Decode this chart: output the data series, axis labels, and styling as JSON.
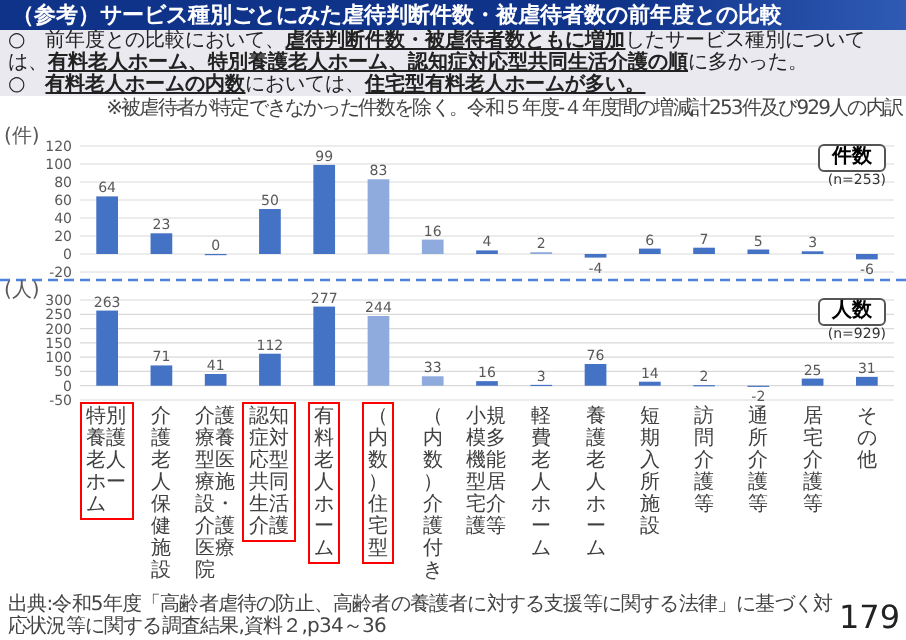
{
  "chart_data": [
    {
      "type": "bar",
      "title": "（参考）サービス種別ごとにみた虐待判断件数・被虐待者数の前年度との比較",
      "subtitle": "○　前年度との比較において、**虐待判断件数・被虐待者数ともに増加**したサービス種別については、**有料老人ホーム、特別養護老人ホーム、認知症対応型共同生活介護の順**に多かった。",
      "annotations": [
        "○　**有料老人ホームの内数**においては、**住宅型有料老人ホームが多い。**",
        "※被虐待者が特定できなかった件数を除く。令和５年度-４年度間の増減計253件及び929人の内訳",
        "件数",
        "(n=253)"
      ],
      "ylabel": "(件)",
      "categories": [
        null,
        null,
        null,
        null,
        null,
        null,
        null,
        null,
        null,
        null,
        null,
        null,
        null,
        null,
        null
      ],
      "values": [
        64,
        23,
        0,
        50,
        99,
        83,
        16,
        4,
        2,
        -4,
        6,
        7,
        5,
        3,
        -6
      ],
      "colors": [
        "#4472c4",
        "#4472c4",
        "#4472c4",
        "#4472c4",
        "#4472c4",
        "#8faadc",
        "#8faadc",
        "#4472c4",
        "#8faadc",
        "#4472c4",
        "#4472c4",
        "#4472c4",
        "#4472c4",
        "#4472c4",
        "#4472c4"
      ],
      "ylim": [
        -20,
        120
      ],
      "yticks": [
        -20,
        0,
        20,
        40,
        60,
        80,
        100,
        120
      ],
      "grid": "y",
      "data_labels": true,
      "tick_labels": "y"
    },
    {
      "type": "bar",
      "ylabel": "(人)",
      "annotations": [
        "人数",
        "(n=929)",
        "出典:令和5年度「高齢者虐待の防止、高齢者の養護者に対する支援等に関する法律」に基づく対応状況等に関する調査結果,資料２,p34～36",
        "179"
      ],
      "categories": [
        "特別養護老人ホーム",
        "介護老人保健施設",
        "介護療養型医療施設・介護医療院",
        "認知症対応型共同生活介護",
        "有料老人ホーム",
        "（内数）住宅型",
        "（内数）介護付き",
        "小規模多機能型居宅介護等",
        "軽費老人ホーム",
        "養護老人ホーム",
        "短期入所施設",
        "訪問介護等",
        "通所介護等",
        "居宅介護等",
        "その他"
      ],
      "values": [
        263,
        71,
        41,
        112,
        277,
        244,
        33,
        16,
        3,
        76,
        14,
        2,
        -2,
        25,
        31
      ],
      "colors": [
        "#4472c4",
        "#4472c4",
        "#4472c4",
        "#4472c4",
        "#4472c4",
        "#8faadc",
        "#8faadc",
        "#4472c4",
        "#4472c4",
        "#4472c4",
        "#4472c4",
        "#4472c4",
        "#4472c4",
        "#4472c4",
        "#4472c4"
      ],
      "ylim": [
        -50,
        300
      ],
      "yticks": [
        -50,
        0,
        50,
        100,
        150,
        200,
        250,
        300
      ],
      "grid": "y",
      "data_labels": true
    }
  ]
}
